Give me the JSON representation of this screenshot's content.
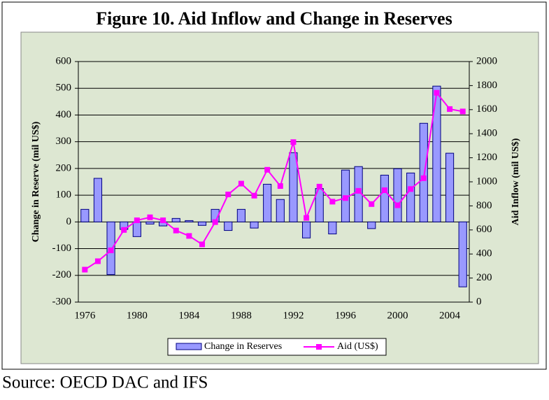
{
  "chart_data": {
    "type": "combo",
    "title": "Figure 10. Aid Inflow and Change in Reserves",
    "y_label": "Change in Reserve (mil US$)",
    "y2_label": "Aid Inflow (mil US$)",
    "categories": [
      "1976",
      null,
      null,
      null,
      "1980",
      null,
      null,
      null,
      "1984",
      null,
      null,
      null,
      "1988",
      null,
      null,
      null,
      "1992",
      null,
      null,
      null,
      "1996",
      null,
      null,
      null,
      "2000",
      null,
      null,
      null,
      "2004",
      null
    ],
    "series": [
      {
        "name": "Change in Reserves",
        "type": "bar",
        "color": "#9999ff",
        "values": [
          47,
          163,
          -197,
          -28,
          -55,
          -8,
          -15,
          13,
          5,
          -13,
          47,
          -32,
          47,
          -23,
          141,
          84,
          259,
          -60,
          125,
          -45,
          194,
          207,
          -25,
          175,
          199,
          183,
          369,
          508,
          257,
          -243
        ]
      },
      {
        "name": "Aid (US$)",
        "type": "line",
        "color": "#ff00ff",
        "axis": "y2",
        "values": [
          270,
          340,
          430,
          600,
          680,
          705,
          680,
          595,
          550,
          480,
          665,
          895,
          985,
          885,
          1100,
          965,
          1330,
          700,
          960,
          835,
          865,
          925,
          815,
          930,
          805,
          940,
          1030,
          1740,
          1605,
          1585
        ]
      }
    ],
    "ylim": [
      -300,
      600
    ],
    "yticks": [
      -300,
      -200,
      -100,
      0,
      100,
      200,
      300,
      400,
      500,
      600
    ],
    "y2lim": [
      0,
      2000
    ],
    "y2ticks": [
      0,
      200,
      400,
      600,
      800,
      1000,
      1200,
      1400,
      1600,
      1800,
      2000
    ],
    "grid": true,
    "legend": "bottom"
  },
  "source": "Source: OECD DAC and IFS"
}
